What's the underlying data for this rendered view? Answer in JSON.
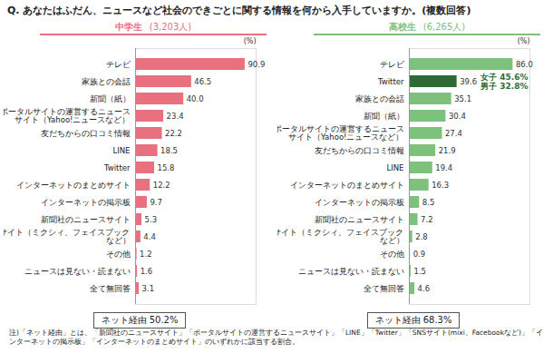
{
  "title": "Q. あなたはふだん、ニュースなど社会のできごとに関する情報を何から入手していますか。(複数回答)",
  "caption": "注)「ネット経由」とは、「新聞社のニュースサイト」「ポータルサイトの運営するニュースサイト」「LINE」「Twitter」「SNSサイト(mixi、Facebookなど)」「インターネットの掲示板」「インターネットのまとめサイト」のいずれかに該当する割合。",
  "chart_data": [
    {
      "type": "bar",
      "orientation": "horizontal",
      "title": "中学生",
      "subtitle": "(3,203人)",
      "xlabel": "(%)",
      "categories": [
        "テレビ",
        "家族との会話",
        "新聞（紙）",
        "ポータルサイトの運営するニュース\nサイト（Yahoo!ニュースなど）",
        "友だちからの口コミ情報",
        "LINE",
        "Twitter",
        "インターネットのまとめサイト",
        "インターネットの掲示板",
        "新聞社のニュースサイト",
        "SNSサイト（ミクシィ、フェイスブック\nなど）",
        "その他",
        "ニュースは見ない・読まない",
        "全て無回答"
      ],
      "values": [
        90.9,
        46.5,
        40.0,
        23.4,
        22.2,
        18.5,
        15.8,
        12.2,
        9.7,
        5.3,
        4.4,
        1.2,
        1.6,
        3.1
      ],
      "value_labels": [
        "90.9",
        "46.5",
        "40.0",
        "23.4",
        "22.2",
        "18.5",
        "15.8",
        "12.2",
        "9.7",
        "5.3",
        "4.4",
        "1.2",
        "1.6",
        "3.1"
      ],
      "color": "#e8707f",
      "data_labels": true,
      "tick_labels": "y",
      "xlim": [
        0,
        100
      ],
      "xticks": [],
      "footnote": "ネット経由 50.2%"
    },
    {
      "type": "bar",
      "orientation": "horizontal",
      "title": "高校生",
      "subtitle": "(6,265人)",
      "xlabel": "(%)",
      "categories": [
        "テレビ",
        "Twitter",
        "家族との会話",
        "新聞（紙）",
        "ポータルサイトの運営するニュース\nサイト（Yahoo!ニュースなど）",
        "友だちからの口コミ情報",
        "LINE",
        "インターネットのまとめサイト",
        "インターネットの掲示板",
        "新聞社のニュースサイト",
        "SNSサイト（ミクシィ、フェイスブック\nなど）",
        "その他",
        "ニュースは見ない・読まない",
        "全て無回答"
      ],
      "values": [
        86.0,
        39.6,
        35.1,
        30.4,
        27.4,
        21.9,
        19.4,
        16.3,
        8.5,
        7.2,
        2.8,
        0.9,
        1.5,
        4.6
      ],
      "value_labels": [
        "86.0",
        "39.6",
        "35.1",
        "30.4",
        "27.4",
        "21.9",
        "19.4",
        "16.3",
        "8.5",
        "7.2",
        "2.8",
        "0.9",
        "1.5",
        "4.6"
      ],
      "color": "#7dc17d",
      "colors": [
        "#7dc17d",
        "#2e6b34",
        "#7dc17d",
        "#7dc17d",
        "#7dc17d",
        "#7dc17d",
        "#7dc17d",
        "#7dc17d",
        "#7dc17d",
        "#7dc17d",
        "#7dc17d",
        "#7dc17d",
        "#7dc17d",
        "#7dc17d"
      ],
      "data_labels": true,
      "tick_labels": "y",
      "xlim": [
        0,
        100
      ],
      "xticks": [],
      "annotations": [
        {
          "category": "Twitter",
          "text": "女子 45.6%\n男子 32.8%"
        }
      ],
      "footnote": "ネット経由 68.3%"
    }
  ]
}
